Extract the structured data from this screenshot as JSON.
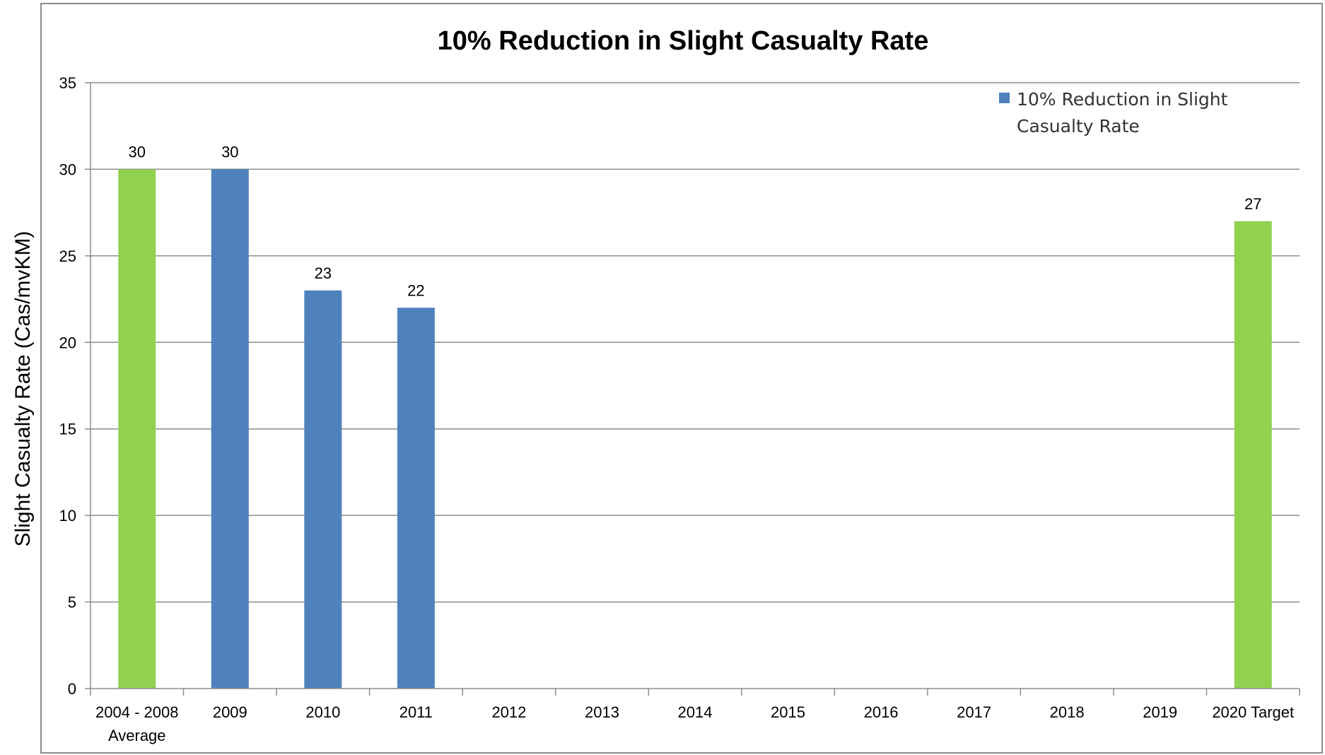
{
  "chart_data": {
    "type": "bar",
    "title": "10% Reduction in Slight Casualty Rate",
    "ylabel": "Slight Casualty Rate (Cas/mvKM)",
    "xlabel": "",
    "ylim": [
      0,
      35
    ],
    "yticks": [
      0,
      5,
      10,
      15,
      20,
      25,
      30,
      35
    ],
    "grid": true,
    "legend": {
      "position": "top-right",
      "entries": [
        {
          "label_lines": [
            "10% Reduction in Slight",
            "Casualty Rate"
          ],
          "color": "#4F81BD"
        }
      ]
    },
    "categories": [
      {
        "lines": [
          "2004 - 2008",
          "Average"
        ]
      },
      {
        "lines": [
          "2009"
        ]
      },
      {
        "lines": [
          "2010"
        ]
      },
      {
        "lines": [
          "2011"
        ]
      },
      {
        "lines": [
          "2012"
        ]
      },
      {
        "lines": [
          "2013"
        ]
      },
      {
        "lines": [
          "2014"
        ]
      },
      {
        "lines": [
          "2015"
        ]
      },
      {
        "lines": [
          "2016"
        ]
      },
      {
        "lines": [
          "2017"
        ]
      },
      {
        "lines": [
          "2018"
        ]
      },
      {
        "lines": [
          "2019"
        ]
      },
      {
        "lines": [
          "2020 Target"
        ]
      }
    ],
    "values": [
      30,
      30,
      23,
      22,
      null,
      null,
      null,
      null,
      null,
      null,
      null,
      null,
      27
    ],
    "data_labels": [
      "30",
      "30",
      "23",
      "22",
      "",
      "",
      "",
      "",
      "",
      "",
      "",
      "",
      "27"
    ],
    "bar_colors": [
      "#92D050",
      "#4F81BD",
      "#4F81BD",
      "#4F81BD",
      "#4F81BD",
      "#4F81BD",
      "#4F81BD",
      "#4F81BD",
      "#4F81BD",
      "#4F81BD",
      "#4F81BD",
      "#4F81BD",
      "#92D050"
    ]
  },
  "colors": {
    "grid": "#8C8C8C",
    "frame": "#8C8C8C"
  }
}
